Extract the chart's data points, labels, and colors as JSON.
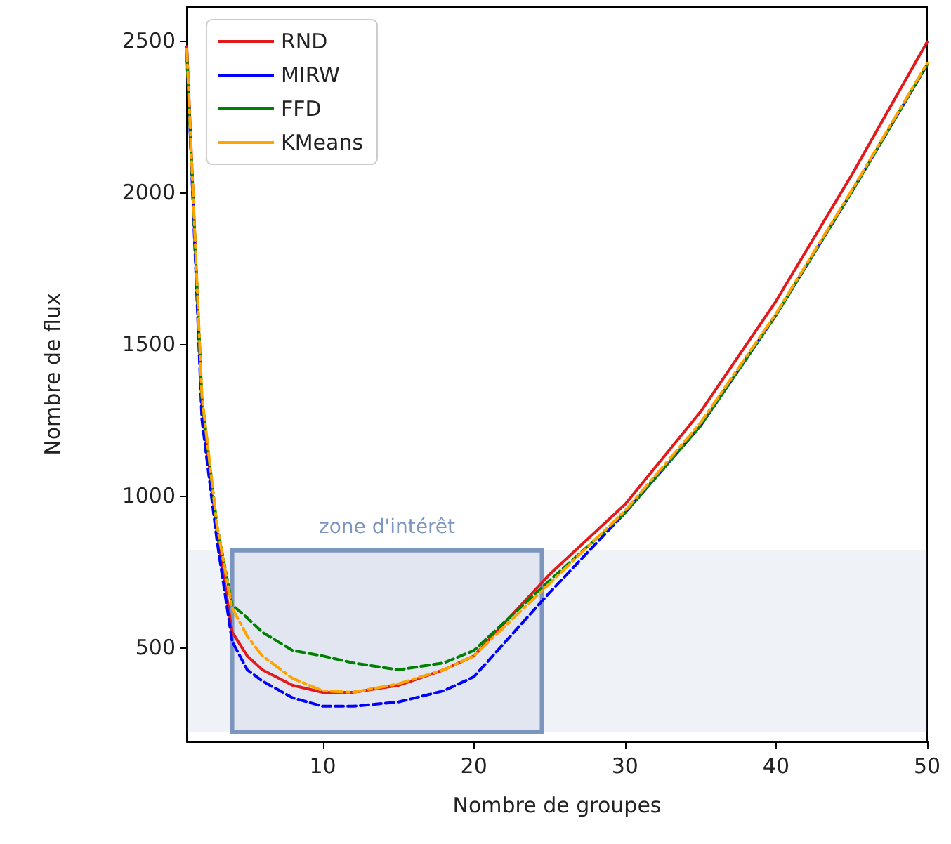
{
  "chart_data": {
    "type": "line",
    "xlabel": "Nombre de groupes",
    "ylabel": "Nombre de flux",
    "x": [
      1,
      2,
      3,
      4,
      5,
      6,
      8,
      10,
      12,
      15,
      18,
      20,
      25,
      30,
      35,
      40,
      45,
      50
    ],
    "series": [
      {
        "name": "RND",
        "color": "#e31a1c",
        "line_style": "solid",
        "values": [
          2480,
          1300,
          880,
          550,
          472,
          426,
          375,
          352,
          352,
          375,
          426,
          472,
          740,
          971,
          1276,
          1641,
          2056,
          2495
        ]
      },
      {
        "name": "MIRW",
        "color": "#0000ff",
        "line_style": "dashed",
        "values": [
          2460,
          1250,
          850,
          520,
          426,
          389,
          334,
          306,
          306,
          320,
          357,
          403,
          680,
          943,
          1230,
          1595,
          2000,
          2420
        ]
      },
      {
        "name": "FFD",
        "color": "#008000",
        "line_style": "dashed",
        "values": [
          2450,
          1320,
          900,
          640,
          597,
          550,
          490,
          472,
          449,
          426,
          449,
          490,
          720,
          943,
          1230,
          1595,
          2000,
          2420
        ]
      },
      {
        "name": "KMeans",
        "color": "#ffa500",
        "line_style": "dashdot",
        "values": [
          2470,
          1330,
          900,
          630,
          537,
          472,
          398,
          357,
          352,
          380,
          426,
          472,
          710,
          950,
          1240,
          1600,
          2005,
          2425
        ]
      }
    ],
    "xlim": [
      1,
      50
    ],
    "xticks": [
      10,
      20,
      30,
      40,
      50
    ],
    "ylim": [
      190,
      2610
    ],
    "yticks": [
      500,
      1000,
      1500,
      2000,
      2500
    ],
    "bands": [
      {
        "axis": "x",
        "from": 4,
        "to": 24.5,
        "label": "zone d'intérêt",
        "color": "#7b96c0"
      },
      {
        "axis": "y",
        "from": 220,
        "to": 820,
        "color": "#7b96c0"
      }
    ],
    "legend": "top left",
    "marker": "none",
    "grid": false
  }
}
